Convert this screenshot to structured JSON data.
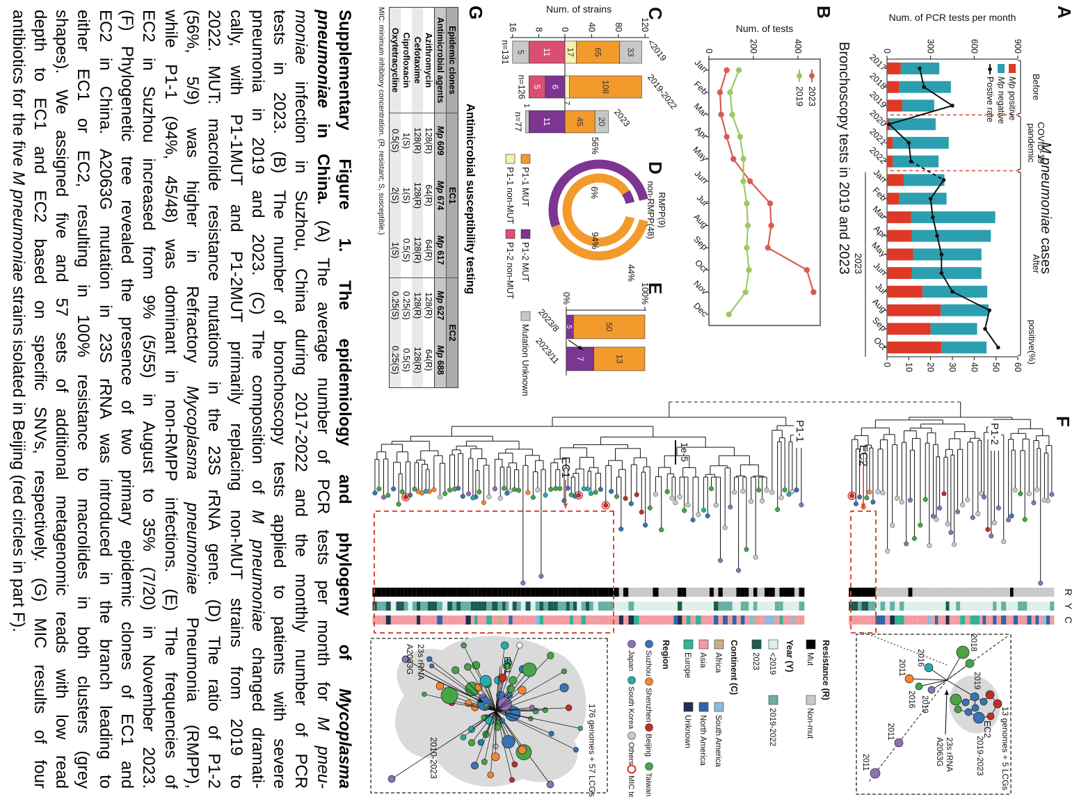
{
  "colors": {
    "positive": "#DE3926",
    "negative": "#2B9FAF",
    "rate": "#111111",
    "dashed_red": "#D84937",
    "line2023": "#D85C52",
    "line2019": "#9CC963",
    "p11mut": "#F39A2D",
    "p11non": "#F6F1AE",
    "p12mut": "#7C3590",
    "p12non": "#D94F72",
    "unknown": "#C8C8C8"
  },
  "panelA": {
    "label": "A",
    "title_italic": "M pneumoniae",
    "title_rest": " cases",
    "y_label": "Num. of PCR tests per month",
    "y_ticks": [
      0,
      300,
      600,
      900
    ],
    "y2_label": "positive(%)",
    "y2_ticks": [
      0,
      10,
      20,
      30,
      40,
      50,
      60
    ],
    "group_labels": [
      [
        "Before"
      ],
      [
        "COVID-19",
        "pandemic"
      ],
      [
        "After"
      ]
    ],
    "bracket_label": "2023",
    "legend": [
      {
        "italic": "Mp",
        "label": " positive",
        "type": "rect",
        "colorKey": "positive"
      },
      {
        "italic": "Mp",
        "label": " negative",
        "type": "rect",
        "colorKey": "negative"
      },
      {
        "italic": "",
        "label": "Postive rate",
        "type": "line",
        "colorKey": "rate"
      }
    ],
    "categories": [
      "2017",
      "2018",
      "2019",
      "2020",
      "2021",
      "2022",
      "Jan",
      "Feb",
      "Mar",
      "Apr",
      "May",
      "Jun",
      "Jul",
      "Aug",
      "Sep",
      "Oct"
    ],
    "positive": [
      95,
      85,
      105,
      20,
      40,
      40,
      115,
      85,
      165,
      170,
      180,
      170,
      245,
      370,
      300,
      375
    ],
    "negative": [
      265,
      355,
      220,
      315,
      385,
      315,
      280,
      325,
      580,
      545,
      470,
      480,
      445,
      330,
      320,
      310
    ],
    "rate": [
      15,
      17,
      30,
      1,
      10,
      11,
      26,
      20,
      21,
      23,
      25,
      25,
      30,
      47,
      45,
      51
    ]
  },
  "panelB": {
    "label": "B",
    "title": "Bronchoscopy tests in 2019 and 2023",
    "y_label": "Num. of tests",
    "y_ticks": [
      0,
      200,
      400
    ],
    "months": [
      "Jan",
      "Feb",
      "Mar",
      "Apr",
      "May",
      "Jun",
      "Jul",
      "Aug",
      "Sep",
      "Oct",
      "Nov",
      "Dec"
    ],
    "series": [
      {
        "name": "2023",
        "colorKey": "line2023",
        "values": [
          80,
          50,
          55,
          80,
          110,
          185,
          275,
          280,
          265,
          440,
          470,
          null
        ]
      },
      {
        "name": "2019",
        "colorKey": "line2019",
        "values": [
          135,
          95,
          105,
          140,
          155,
          155,
          170,
          175,
          170,
          180,
          165,
          90
        ]
      }
    ]
  },
  "panelC": {
    "label": "C",
    "y_label": "Num. of strains",
    "up_ticks": [
      0,
      40,
      80,
      120
    ],
    "down_ticks": [
      8,
      16
    ],
    "groups": [
      {
        "name": "<2019",
        "n": "n=131",
        "up": [
          [
            "p11non",
            17
          ],
          [
            "p11mut",
            65
          ],
          [
            "unknown",
            33
          ]
        ],
        "down": [
          [
            "p12non",
            11
          ],
          [
            "unknown",
            5
          ]
        ]
      },
      {
        "name": "2019-2022",
        "n": "n=126",
        "up": [
          [
            "p11non",
            7
          ],
          [
            "p11mut",
            108
          ]
        ],
        "down": [
          [
            "p12mut",
            6
          ],
          [
            "p12non",
            5
          ]
        ]
      },
      {
        "name": "2023",
        "n": "n=77",
        "up": [
          [
            "p11mut",
            45
          ],
          [
            "unknown",
            20
          ]
        ],
        "down": [
          [
            "p12mut",
            11
          ],
          [
            "unknown",
            1
          ]
        ]
      }
    ]
  },
  "panelD": {
    "label": "D",
    "center_line1": "RMPP(9)",
    "center_line2": "non-RMPP(48)",
    "outer": [
      [
        "p11mut",
        44
      ],
      [
        "p12mut",
        56
      ]
    ],
    "inner": [
      [
        "p11mut",
        94
      ],
      [
        "p12mut",
        6
      ]
    ],
    "pct_labels": {
      "outer_purple": "56%",
      "inner_purple": "6%",
      "inner_orange": "94%",
      "outer_orange": "44%"
    }
  },
  "panelE": {
    "label": "E",
    "ticks": [
      "0%",
      "100%"
    ],
    "bars": [
      {
        "name": "2023/8",
        "purple": 5,
        "orange": 50
      },
      {
        "name": "2023/11",
        "purple": 7,
        "orange": 13
      }
    ]
  },
  "legend_cde": [
    {
      "label": "P1-1 MUT",
      "colorKey": "p11mut"
    },
    {
      "label": "P1-1 non-MUT",
      "colorKey": "p11non"
    },
    {
      "label": "P1-2 MUT",
      "colorKey": "p12mut"
    },
    {
      "label": "P1-2 non-MUT",
      "colorKey": "p12non"
    },
    {
      "label": "Mutation Unknown",
      "colorKey": "unknown"
    }
  ],
  "panelF": {
    "label": "F",
    "scale_label": "1e-5",
    "clade_labels": {
      "p11": "P1-1",
      "p12": "P1-2"
    },
    "ec_labels": {
      "ec1": "EC1",
      "ec2": "EC2"
    },
    "col_headers": [
      "R",
      "Y",
      "C"
    ],
    "legends": {
      "resistance": {
        "title": "Resistance (R)",
        "items": [
          {
            "label": "Mut",
            "color": "#000000"
          },
          {
            "label": "Non-mut",
            "color": "#C9C9C9"
          }
        ]
      },
      "year": {
        "title": "Year (Y)",
        "items": [
          {
            "label": "<2019",
            "color": "#DEF0EC"
          },
          {
            "label": "2019-2022",
            "color": "#68B0A4"
          },
          {
            "label": "2023",
            "color": "#1D5A50"
          }
        ]
      },
      "continent": {
        "title": "Continent (C)",
        "items": [
          {
            "label": "Africa",
            "color": "#C7B087"
          },
          {
            "label": "Asia",
            "color": "#F49BA2"
          },
          {
            "label": "Europe",
            "color": "#31B492"
          },
          {
            "label": "South America",
            "color": "#90BADC"
          },
          {
            "label": "North America",
            "color": "#2E66AD"
          },
          {
            "label": "Unknown",
            "color": "#20304E"
          }
        ]
      },
      "region": {
        "title": "Region",
        "items": [
          {
            "label": "Suzhou",
            "color": "#3674B5"
          },
          {
            "label": "Shenzhen",
            "color": "#F58531"
          },
          {
            "label": "Beijing",
            "color": "#BE3026"
          },
          {
            "label": "Taiwan",
            "color": "#47A447"
          },
          {
            "label": "Japan",
            "color": "#8E6FB8"
          },
          {
            "label": "South Korea",
            "color": "#27ABAE"
          },
          {
            "label": "Others",
            "color": "#C9C9C9"
          },
          {
            "label": "MIC tested",
            "color": "#D93025",
            "open": true
          }
        ]
      }
    },
    "inset1": {
      "mutation": [
        "23s rRNA",
        "A2063G"
      ],
      "ec": "EC1",
      "note": "176 genomes + 57 LCGs",
      "years": "2010-2023"
    },
    "inset2": {
      "note": "13 genomes + 5 LCGs",
      "ec": "EC2",
      "mutation": [
        "23s rRNA",
        "A2063G"
      ],
      "range": "2019-2023",
      "node_years": [
        "2018",
        "2019",
        "2016",
        "2011",
        "2016",
        "2019",
        "2011",
        "2011"
      ]
    }
  },
  "panelG": {
    "label": "G",
    "title": "Antimicrobial susceptibility testing",
    "header1": {
      "col0": "Epidemic clones",
      "ec1": "EC1",
      "ec2": "EC2"
    },
    "header2": [
      "Antimicrobial agents",
      "Mp 609",
      "Mp 674",
      "Mp 617",
      "Mp 627",
      "Mp 688"
    ],
    "rows": [
      [
        "Azithromycin",
        "128(R)",
        "64(R)",
        "64(R)",
        "128(R)",
        "64(R)"
      ],
      [
        "Cefotaxime",
        "128(R)",
        "128(R)",
        "128(R)",
        "128(R)",
        "128(R)"
      ],
      [
        "Ciprofloxacin",
        "1(S)",
        "1(S)",
        "0.5(S)",
        "0.25(S)",
        "0.5(S)"
      ],
      [
        "Oxytetracycline",
        "0.5(S)",
        "2(S)",
        "1(S)",
        "0.25(S)",
        "0.25(S)"
      ]
    ],
    "footnote": "MIC: minimum inhibitory concentration. (R, resistant; S, susceptible.)"
  },
  "caption": {
    "lines": [
      [
        [
          "Supplementary Figure 1. The epidemiology and phylogeny of ",
          "b"
        ],
        [
          "Mycoplasma",
          "bi"
        ]
      ],
      [
        [
          "pneumoniae",
          "bi"
        ],
        [
          " in China.",
          "b"
        ],
        [
          " (A) The average number of PCR tests per month for ",
          ""
        ],
        [
          "M pneu-",
          "i"
        ]
      ],
      [
        [
          "moniae",
          "i"
        ],
        [
          " infection in Suzhou, China during 2017-2022 and the monthly number of PCR",
          ""
        ]
      ],
      [
        [
          "tests in 2023. (B) The number of bronchoscopy tests applied to patients with severe",
          ""
        ]
      ],
      [
        [
          "pneumonia in 2019 and 2023. (C) The composition of ",
          ""
        ],
        [
          "M pneumoniae",
          "i"
        ],
        [
          " changed dramati-",
          ""
        ]
      ],
      [
        [
          "cally, with P1-1MUT and P1-2MUT primarily replacing non-MUT strains from 2019 to",
          ""
        ]
      ],
      [
        [
          "2022. MUT: macrolide resistance mutations in the 23S rRNA gene. (D) The ratio of P1-2",
          ""
        ]
      ],
      [
        [
          "(56%, 5/9) was higher in Refractory ",
          ""
        ],
        [
          "Mycoplasma pneumoniae",
          "i"
        ],
        [
          " Pneumonia (RMPP),",
          ""
        ]
      ],
      [
        [
          "while P1-1 (94%, 45/48) was dominant in non-RMPP infections. (E) The frequencies of",
          ""
        ]
      ],
      [
        [
          "EC2 in Suzhou increased from 9% (5/55) in August to 35% (7/20) in November 2023.",
          ""
        ]
      ],
      [
        [
          "(F) Phylogenetic tree revealed the presence of two primary epidemic clones of EC1 and",
          ""
        ]
      ],
      [
        [
          "EC2 in China. A2063G mutation in 23S rRNA was introduced in the branch leading to",
          ""
        ]
      ],
      [
        [
          "either EC1 or EC2, resulting in 100% resistance to macrolides in both clusters (grey",
          ""
        ]
      ],
      [
        [
          "shapes). We assigned five and 57 sets of additional metagenomic reads with low read",
          ""
        ]
      ],
      [
        [
          "depth to EC1 and EC2 based on specific SNVs, respectively. (G) MIC results of four",
          ""
        ]
      ],
      [
        [
          "antibiotics for the five ",
          ""
        ],
        [
          "M pneumoniae",
          "i"
        ],
        [
          " strains isolated in Beijing (red circles in part F).",
          ""
        ]
      ]
    ]
  },
  "chart_data": [
    {
      "type": "bar",
      "title": "M pneumoniae cases",
      "ylabel": "Num. of PCR tests per month",
      "ylim": [
        0,
        900
      ],
      "categories": [
        "2017",
        "2018",
        "2019",
        "2020",
        "2021",
        "2022",
        "Jan",
        "Feb",
        "Mar",
        "Apr",
        "May",
        "Jun",
        "Jul",
        "Aug",
        "Sep",
        "Oct"
      ],
      "series": [
        {
          "name": "Mp positive",
          "values": [
            95,
            85,
            105,
            20,
            40,
            40,
            115,
            85,
            165,
            170,
            180,
            170,
            245,
            370,
            300,
            375
          ]
        },
        {
          "name": "Mp negative",
          "values": [
            265,
            355,
            220,
            315,
            385,
            315,
            280,
            325,
            580,
            545,
            470,
            480,
            445,
            330,
            320,
            310
          ]
        },
        {
          "name": "Postive rate (%)",
          "values": [
            15,
            17,
            30,
            1,
            10,
            11,
            26,
            20,
            21,
            23,
            25,
            25,
            30,
            47,
            45,
            51
          ]
        }
      ]
    },
    {
      "type": "line",
      "title": "Bronchoscopy tests in 2019 and 2023",
      "ylabel": "Num. of tests",
      "ylim": [
        0,
        500
      ],
      "x": [
        "Jan",
        "Feb",
        "Mar",
        "Apr",
        "May",
        "Jun",
        "Jul",
        "Aug",
        "Sep",
        "Oct",
        "Nov",
        "Dec"
      ],
      "series": [
        {
          "name": "2023",
          "values": [
            80,
            50,
            55,
            80,
            110,
            185,
            275,
            280,
            265,
            440,
            470,
            null
          ]
        },
        {
          "name": "2019",
          "values": [
            135,
            95,
            105,
            140,
            155,
            155,
            170,
            175,
            170,
            180,
            165,
            90
          ]
        }
      ]
    },
    {
      "type": "bar",
      "title": "Num. of strains (diverging: P1-1 up / P1-2 down)",
      "categories": [
        "<2019",
        "2019-2022",
        "2023"
      ],
      "series": [
        {
          "name": "P1-1 non-MUT",
          "values": [
            17,
            7,
            0
          ]
        },
        {
          "name": "P1-1 MUT",
          "values": [
            65,
            108,
            45
          ]
        },
        {
          "name": "Unknown (up)",
          "values": [
            33,
            0,
            20
          ]
        },
        {
          "name": "P1-2 MUT",
          "values": [
            0,
            6,
            11
          ]
        },
        {
          "name": "P1-2 non-MUT",
          "values": [
            11,
            5,
            0
          ]
        },
        {
          "name": "Unknown (down)",
          "values": [
            5,
            0,
            1
          ]
        }
      ],
      "totals": [
        "n=131",
        "n=126",
        "n=77"
      ]
    },
    {
      "type": "pie",
      "title": "RMPP(9) vs non-RMPP(48)",
      "series": [
        {
          "name": "RMPP outer ring",
          "slices": {
            "P1-2 MUT": 56,
            "P1-1 MUT": 44
          }
        },
        {
          "name": "non-RMPP inner ring",
          "slices": {
            "P1-2 MUT": 6,
            "P1-1 MUT": 94
          }
        }
      ]
    },
    {
      "type": "bar",
      "title": "EC2 frequency in Suzhou",
      "categories": [
        "2023/8",
        "2023/11"
      ],
      "series": [
        {
          "name": "P1-2 MUT",
          "values": [
            5,
            7
          ]
        },
        {
          "name": "P1-1 MUT",
          "values": [
            50,
            13
          ]
        }
      ],
      "ylim": [
        "0%",
        "100%"
      ]
    }
  ]
}
